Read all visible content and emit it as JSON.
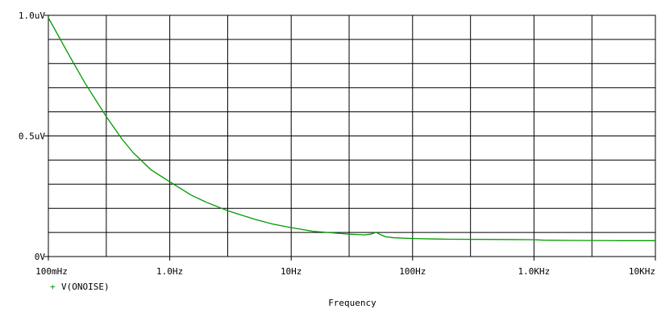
{
  "chart_data": {
    "type": "line",
    "title": "",
    "xlabel": "Frequency",
    "ylabel": "",
    "x_scale": "log",
    "xlim": [
      0.1,
      10000
    ],
    "ylim": [
      0,
      1.0
    ],
    "y_unit": "uV",
    "grid": true,
    "legend_position": "bottom-left",
    "x_ticks": [
      {
        "value": 0.1,
        "label": "100mHz"
      },
      {
        "value": 1,
        "label": "1.0Hz"
      },
      {
        "value": 10,
        "label": "10Hz"
      },
      {
        "value": 100,
        "label": "100Hz"
      },
      {
        "value": 1000,
        "label": "1.0KHz"
      },
      {
        "value": 10000,
        "label": "10KHz"
      }
    ],
    "x_minor_gridlines": [
      0.3,
      3,
      30,
      300,
      3000
    ],
    "y_ticks": [
      {
        "value": 0,
        "label": "0V"
      },
      {
        "value": 0.5,
        "label": "0.5uV"
      },
      {
        "value": 1.0,
        "label": "1.0uV"
      }
    ],
    "y_minor_gridlines": [
      0.1,
      0.2,
      0.3,
      0.4,
      0.6,
      0.7,
      0.8,
      0.9
    ],
    "series": [
      {
        "name": "V(ONOISE)",
        "marker": "+",
        "color": "#009900",
        "x": [
          0.1,
          0.15,
          0.2,
          0.3,
          0.4,
          0.5,
          0.7,
          1,
          1.5,
          2,
          3,
          5,
          7,
          10,
          15,
          20,
          30,
          40,
          45,
          50,
          55,
          60,
          70,
          100,
          150,
          200,
          500,
          1000,
          1200,
          2000,
          5000,
          10000
        ],
        "values": [
          0.99,
          0.83,
          0.72,
          0.58,
          0.49,
          0.43,
          0.36,
          0.31,
          0.255,
          0.225,
          0.19,
          0.155,
          0.135,
          0.12,
          0.105,
          0.1,
          0.093,
          0.09,
          0.093,
          0.1,
          0.09,
          0.082,
          0.078,
          0.075,
          0.073,
          0.072,
          0.071,
          0.07,
          0.068,
          0.067,
          0.066,
          0.066
        ]
      }
    ]
  }
}
